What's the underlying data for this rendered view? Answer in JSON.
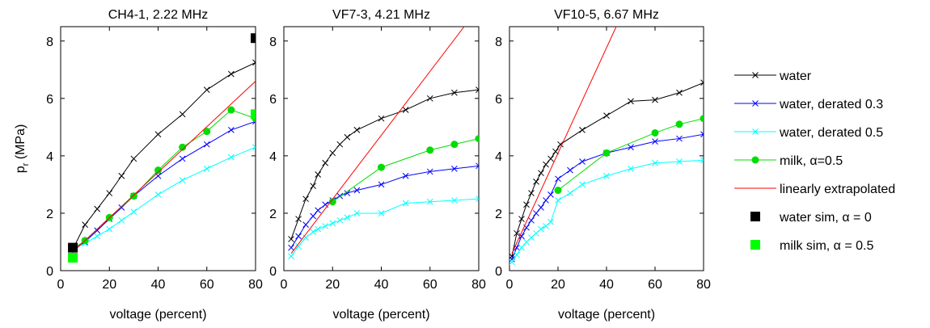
{
  "shared": {
    "ylabel_main": "p",
    "ylabel_sub": "r",
    "ylabel_unit": " (MPa)",
    "xlabel": "voltage (percent)",
    "xlim": [
      0,
      80
    ],
    "ylim": [
      0,
      8.5
    ],
    "xticks": [
      0,
      20,
      40,
      60,
      80
    ],
    "yticks": [
      0,
      2,
      4,
      6,
      8
    ]
  },
  "legend": {
    "placement": "right",
    "entries": [
      {
        "label": "water",
        "color": "#000000",
        "style": "line-x"
      },
      {
        "label": "water, derated 0.3",
        "color": "#0000ff",
        "style": "line-x"
      },
      {
        "label": "water, derated 0.5",
        "color": "#00ffff",
        "style": "line-x"
      },
      {
        "label": "milk, α=0.5",
        "color": "#00dd00",
        "style": "line-dot"
      },
      {
        "label": "linearly extrapolated",
        "color": "#ff0000",
        "style": "line"
      },
      {
        "label": "water sim, α = 0",
        "color": "#000000",
        "style": "square"
      },
      {
        "label": "milk sim, α = 0.5",
        "color": "#00ff00",
        "style": "square"
      }
    ]
  },
  "chart_data": [
    {
      "type": "line",
      "title": "CH4-1, 2.22 MHz",
      "xlabel": "voltage (percent)",
      "ylabel": "pr (MPa)",
      "xlim": [
        0,
        80
      ],
      "ylim": [
        0,
        8.5
      ],
      "series": [
        {
          "name": "water",
          "color": "#000000",
          "marker": "x",
          "x": [
            5,
            10,
            15,
            20,
            25,
            30,
            40,
            50,
            60,
            70,
            80
          ],
          "y": [
            0.75,
            1.6,
            2.15,
            2.7,
            3.3,
            3.9,
            4.75,
            5.45,
            6.3,
            6.85,
            7.25
          ]
        },
        {
          "name": "water, derated 0.3",
          "color": "#0000ff",
          "marker": "x",
          "x": [
            5,
            10,
            15,
            20,
            25,
            30,
            40,
            50,
            60,
            70,
            80
          ],
          "y": [
            0.75,
            1.0,
            1.4,
            1.8,
            2.2,
            2.6,
            3.3,
            3.9,
            4.4,
            4.9,
            5.2
          ]
        },
        {
          "name": "water, derated 0.5",
          "color": "#00ffff",
          "marker": "x",
          "x": [
            5,
            10,
            15,
            20,
            25,
            30,
            40,
            50,
            60,
            70,
            80
          ],
          "y": [
            0.75,
            0.95,
            1.2,
            1.45,
            1.75,
            2.05,
            2.65,
            3.15,
            3.55,
            3.95,
            4.3
          ]
        },
        {
          "name": "milk, α=0.5",
          "color": "#00dd00",
          "marker": "dot",
          "x": [
            5,
            10,
            20,
            30,
            40,
            50,
            60,
            70,
            80
          ],
          "y": [
            0.75,
            1.05,
            1.85,
            2.6,
            3.5,
            4.3,
            4.85,
            5.6,
            5.3
          ]
        },
        {
          "name": "linearly extrapolated",
          "color": "#ff0000",
          "marker": "none",
          "x": [
            5,
            80
          ],
          "y": [
            0.65,
            6.6
          ]
        },
        {
          "name": "water sim, α = 0",
          "color": "#000000",
          "marker": "square",
          "x": [
            5,
            80
          ],
          "y": [
            0.8,
            8.1
          ]
        },
        {
          "name": "milk sim, α = 0.5",
          "color": "#00ff00",
          "marker": "square",
          "x": [
            5,
            80
          ],
          "y": [
            0.45,
            5.45
          ]
        }
      ]
    },
    {
      "type": "line",
      "title": "VF7-3, 4.21 MHz",
      "xlabel": "voltage (percent)",
      "xlim": [
        0,
        80
      ],
      "ylim": [
        0,
        8.5
      ],
      "series": [
        {
          "name": "water",
          "color": "#000000",
          "marker": "x",
          "x": [
            3,
            6,
            9,
            12,
            14,
            17,
            20,
            23,
            26,
            30,
            40,
            50,
            60,
            70,
            80
          ],
          "y": [
            1.1,
            1.8,
            2.5,
            2.95,
            3.35,
            3.75,
            4.1,
            4.4,
            4.65,
            4.9,
            5.3,
            5.6,
            6.0,
            6.2,
            6.3
          ]
        },
        {
          "name": "water, derated 0.3",
          "color": "#0000ff",
          "marker": "x",
          "x": [
            3,
            6,
            9,
            12,
            14,
            17,
            20,
            23,
            26,
            30,
            40,
            50,
            60,
            70,
            80
          ],
          "y": [
            0.8,
            1.2,
            1.6,
            1.9,
            2.1,
            2.3,
            2.45,
            2.6,
            2.7,
            2.8,
            3.0,
            3.3,
            3.45,
            3.55,
            3.65
          ]
        },
        {
          "name": "water, derated 0.5",
          "color": "#00ffff",
          "marker": "x",
          "x": [
            3,
            6,
            9,
            12,
            14,
            17,
            20,
            23,
            26,
            30,
            40,
            50,
            60,
            70,
            80
          ],
          "y": [
            0.5,
            0.85,
            1.15,
            1.35,
            1.45,
            1.55,
            1.65,
            1.75,
            1.85,
            2.0,
            2.0,
            2.35,
            2.4,
            2.45,
            2.5
          ]
        },
        {
          "name": "milk, α=0.5",
          "color": "#00dd00",
          "marker": "dot",
          "x": [
            20,
            40,
            60,
            70,
            80
          ],
          "y": [
            2.4,
            3.6,
            4.2,
            4.4,
            4.6
          ]
        },
        {
          "name": "linearly extrapolated",
          "color": "#ff0000",
          "marker": "none",
          "x": [
            3,
            74
          ],
          "y": [
            0.6,
            8.5
          ]
        }
      ]
    },
    {
      "type": "line",
      "title": "VF10-5, 6.67 MHz",
      "xlabel": "voltage (percent)",
      "xlim": [
        0,
        80
      ],
      "ylim": [
        0,
        8.5
      ],
      "series": [
        {
          "name": "water",
          "color": "#000000",
          "marker": "x",
          "x": [
            1,
            3,
            5,
            7,
            9,
            11,
            13,
            15,
            17,
            19,
            21,
            30,
            40,
            50,
            60,
            70,
            80
          ],
          "y": [
            0.5,
            1.3,
            1.8,
            2.3,
            2.7,
            3.1,
            3.4,
            3.7,
            3.9,
            4.15,
            4.4,
            4.9,
            5.4,
            5.9,
            5.95,
            6.2,
            6.55
          ]
        },
        {
          "name": "water, derated 0.3",
          "color": "#0000ff",
          "marker": "x",
          "x": [
            1,
            3,
            5,
            7,
            9,
            11,
            13,
            15,
            17,
            20,
            25,
            30,
            40,
            50,
            60,
            70,
            80
          ],
          "y": [
            0.4,
            0.8,
            1.2,
            1.5,
            1.75,
            2.0,
            2.2,
            2.45,
            2.65,
            3.2,
            3.5,
            3.8,
            4.1,
            4.3,
            4.5,
            4.6,
            4.75
          ]
        },
        {
          "name": "water, derated 0.5",
          "color": "#00ffff",
          "marker": "x",
          "x": [
            1,
            3,
            5,
            7,
            9,
            11,
            13,
            15,
            17,
            20,
            25,
            30,
            40,
            50,
            60,
            70,
            80
          ],
          "y": [
            0.3,
            0.55,
            0.8,
            1.0,
            1.15,
            1.3,
            1.45,
            1.55,
            1.7,
            2.45,
            2.7,
            3.0,
            3.3,
            3.55,
            3.75,
            3.8,
            3.85
          ]
        },
        {
          "name": "milk, α=0.5",
          "color": "#00dd00",
          "marker": "dot",
          "x": [
            20,
            40,
            60,
            70,
            80
          ],
          "y": [
            2.8,
            4.1,
            4.8,
            5.1,
            5.3
          ]
        },
        {
          "name": "linearly extrapolated",
          "color": "#ff0000",
          "marker": "none",
          "x": [
            1,
            44
          ],
          "y": [
            0.6,
            8.5
          ]
        }
      ]
    }
  ]
}
